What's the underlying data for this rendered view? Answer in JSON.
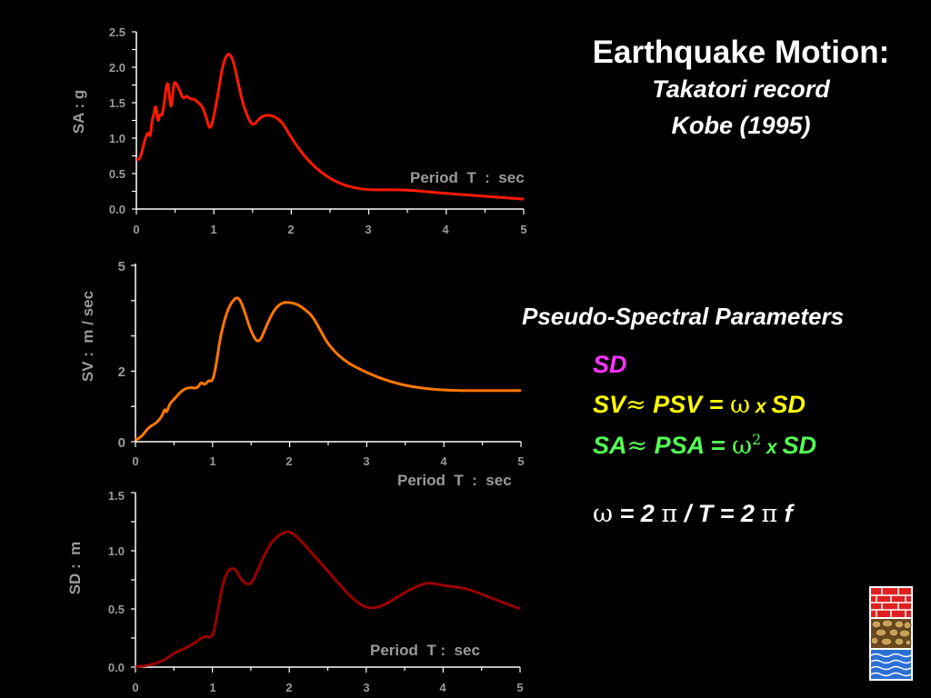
{
  "header": {
    "title": "Earthquake Motion:",
    "subtitle_line1": "Takatori record",
    "subtitle_line2": "Kobe (1995)"
  },
  "pseudo": {
    "title": "Pseudo-Spectral Parameters",
    "sd": "SD",
    "sv_line": {
      "a": "SV",
      "approx": "≈",
      "b": " PSV = ",
      "omega": "ω",
      "x": " x ",
      "c": "SD"
    },
    "sa_line": {
      "a": "SA",
      "approx": "≈",
      "b": " PSA = ",
      "omega": "ω",
      "sup": "2",
      "x": " x ",
      "c": "SD"
    },
    "omega_line": {
      "omega": "ω",
      "b": " = 2 ",
      "pi1": "π",
      "slash": " / ",
      "c": "T = 2 ",
      "pi2": "π",
      "d": " f"
    },
    "colors": {
      "sd": "#ff33ff",
      "sv": "#ffff00",
      "sa": "#55ff55",
      "omega": "#ffffff"
    }
  },
  "logo": {
    "icon": "institution-logo-icon"
  },
  "chart_data": [
    {
      "type": "line",
      "color": "#ff1a00",
      "ylabel": "SA : g",
      "xlabel": "Period  T  :  sec",
      "xlim": [
        0,
        5
      ],
      "ylim": [
        0,
        2.5
      ],
      "xticks": [
        "0",
        "1",
        "2",
        "3",
        "4",
        "5"
      ],
      "yticks": [
        "0.0",
        "0.5",
        "1.0",
        "1.5",
        "2.0",
        "2.5"
      ],
      "x": [
        0,
        0.05,
        0.1,
        0.15,
        0.18,
        0.2,
        0.22,
        0.25,
        0.28,
        0.3,
        0.33,
        0.36,
        0.4,
        0.43,
        0.45,
        0.48,
        0.5,
        0.55,
        0.6,
        0.65,
        0.7,
        0.75,
        0.8,
        0.85,
        0.9,
        0.95,
        1.0,
        1.05,
        1.1,
        1.15,
        1.2,
        1.25,
        1.3,
        1.35,
        1.4,
        1.5,
        1.6,
        1.7,
        1.8,
        1.9,
        2.0,
        2.2,
        2.4,
        2.6,
        2.8,
        3.0,
        3.2,
        3.4,
        3.6,
        3.8,
        4.0,
        4.5,
        5.0
      ],
      "y": [
        0.7,
        0.7,
        0.95,
        1.1,
        1.0,
        1.25,
        1.3,
        1.5,
        1.2,
        1.35,
        1.3,
        1.5,
        1.85,
        1.55,
        1.4,
        1.75,
        1.8,
        1.7,
        1.55,
        1.6,
        1.55,
        1.55,
        1.5,
        1.45,
        1.3,
        1.1,
        1.3,
        1.6,
        1.95,
        2.15,
        2.2,
        2.1,
        1.85,
        1.6,
        1.4,
        1.15,
        1.3,
        1.33,
        1.3,
        1.2,
        1.0,
        0.7,
        0.5,
        0.37,
        0.3,
        0.27,
        0.27,
        0.27,
        0.26,
        0.24,
        0.22,
        0.18,
        0.14
      ]
    },
    {
      "type": "line",
      "color": "#ff7700",
      "ylabel": "SV :  m / sec",
      "xlabel": "Period  T  :  sec",
      "xlim": [
        0,
        5
      ],
      "ylim": [
        0,
        5
      ],
      "xticks": [
        "0",
        "1",
        "2",
        "3",
        "4",
        "5"
      ],
      "yticks": [
        "0",
        "2",
        "5"
      ],
      "x": [
        0,
        0.05,
        0.1,
        0.15,
        0.2,
        0.25,
        0.3,
        0.35,
        0.38,
        0.4,
        0.45,
        0.5,
        0.6,
        0.7,
        0.8,
        0.85,
        0.9,
        0.95,
        1.0,
        1.05,
        1.1,
        1.2,
        1.3,
        1.35,
        1.4,
        1.5,
        1.6,
        1.7,
        1.8,
        1.9,
        2.0,
        2.1,
        2.2,
        2.3,
        2.4,
        2.5,
        2.7,
        3.0,
        3.3,
        3.6,
        4.0,
        4.5,
        5.0
      ],
      "y": [
        0.05,
        0.1,
        0.2,
        0.35,
        0.45,
        0.5,
        0.6,
        0.75,
        0.95,
        0.8,
        1.1,
        1.2,
        1.45,
        1.55,
        1.5,
        1.7,
        1.6,
        1.75,
        1.7,
        2.2,
        3.0,
        3.8,
        4.1,
        4.05,
        3.8,
        3.1,
        2.75,
        3.3,
        3.75,
        3.95,
        3.95,
        3.9,
        3.75,
        3.55,
        3.15,
        2.75,
        2.3,
        1.95,
        1.7,
        1.55,
        1.45,
        1.45,
        1.45
      ]
    },
    {
      "type": "line",
      "color": "#990000",
      "ylabel": "SD :  m",
      "xlabel": "Period  T :  sec",
      "xlim": [
        0,
        5
      ],
      "ylim": [
        0,
        1.5
      ],
      "xticks": [
        "0",
        "1",
        "2",
        "3",
        "4",
        "5"
      ],
      "yticks": [
        "0.0",
        "0.5",
        "1.0",
        "1.5"
      ],
      "x": [
        0,
        0.1,
        0.2,
        0.3,
        0.4,
        0.5,
        0.6,
        0.7,
        0.8,
        0.9,
        1.0,
        1.05,
        1.1,
        1.15,
        1.2,
        1.25,
        1.3,
        1.35,
        1.4,
        1.5,
        1.6,
        1.7,
        1.8,
        1.9,
        2.0,
        2.1,
        2.2,
        2.4,
        2.6,
        2.8,
        3.0,
        3.2,
        3.4,
        3.6,
        3.8,
        4.0,
        4.3,
        4.6,
        5.0
      ],
      "y": [
        0.0,
        0.01,
        0.02,
        0.04,
        0.07,
        0.12,
        0.15,
        0.18,
        0.22,
        0.27,
        0.25,
        0.4,
        0.6,
        0.75,
        0.83,
        0.85,
        0.84,
        0.78,
        0.73,
        0.7,
        0.85,
        1.0,
        1.1,
        1.15,
        1.17,
        1.12,
        1.05,
        0.9,
        0.75,
        0.6,
        0.5,
        0.52,
        0.6,
        0.68,
        0.73,
        0.7,
        0.68,
        0.6,
        0.5
      ]
    }
  ]
}
